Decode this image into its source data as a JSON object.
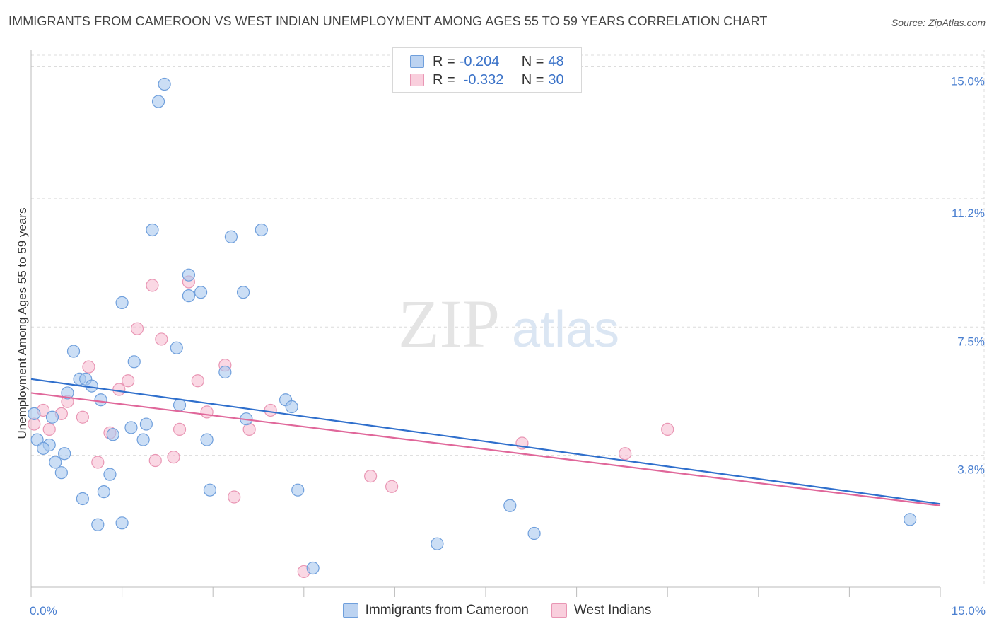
{
  "title": "IMMIGRANTS FROM CAMEROON VS WEST INDIAN UNEMPLOYMENT AMONG AGES 55 TO 59 YEARS CORRELATION CHART",
  "source": "Source: ZipAtlas.com",
  "watermark": {
    "zip": "ZIP",
    "atlas": "atlas"
  },
  "legend": {
    "r_label": "R =",
    "n_label": "N =",
    "series": [
      {
        "r": "-0.204",
        "n": "48"
      },
      {
        "r": "-0.332",
        "n": "30"
      }
    ]
  },
  "colors": {
    "blue_fill": "#a9c8ee",
    "blue_stroke": "#6f9fdc",
    "blue_line": "#2f6fcc",
    "pink_fill": "#f6bed2",
    "pink_stroke": "#e996b4",
    "pink_line": "#e0679a",
    "tick_text": "#4a7fd0",
    "grid": "#dcdcdc"
  },
  "chart_data": {
    "type": "scatter",
    "title": "IMMIGRANTS FROM CAMEROON VS WEST INDIAN UNEMPLOYMENT AMONG AGES 55 TO 59 YEARS CORRELATION CHART",
    "xlabel": "",
    "ylabel": "Unemployment Among Ages 55 to 59 years",
    "xlim": [
      0,
      15
    ],
    "ylim": [
      0,
      15.5
    ],
    "y_ticks": [
      {
        "value": 3.8,
        "label": "3.8%"
      },
      {
        "value": 7.5,
        "label": "7.5%"
      },
      {
        "value": 11.2,
        "label": "11.2%"
      },
      {
        "value": 15.0,
        "label": "15.0%"
      }
    ],
    "x_tick_labels": [
      {
        "value": 0,
        "label": "0.0%"
      },
      {
        "value": 15,
        "label": "15.0%"
      }
    ],
    "grid": true,
    "legend_position": "top-center",
    "series": [
      {
        "name": "Immigrants from Cameroon",
        "color": "#a9c8ee",
        "r": -0.204,
        "n": 48,
        "trend": {
          "x": [
            0,
            15
          ],
          "y": [
            6.0,
            2.4
          ]
        },
        "points": [
          [
            2.1,
            14.0
          ],
          [
            2.2,
            14.5
          ],
          [
            2.0,
            10.3
          ],
          [
            3.3,
            10.1
          ],
          [
            3.8,
            10.3
          ],
          [
            2.6,
            9.0
          ],
          [
            2.8,
            8.5
          ],
          [
            2.6,
            8.4
          ],
          [
            3.5,
            8.5
          ],
          [
            1.5,
            8.2
          ],
          [
            0.7,
            6.8
          ],
          [
            2.4,
            6.9
          ],
          [
            1.7,
            6.5
          ],
          [
            3.2,
            6.2
          ],
          [
            0.8,
            6.0
          ],
          [
            0.9,
            6.0
          ],
          [
            1.0,
            5.8
          ],
          [
            0.6,
            5.6
          ],
          [
            1.15,
            5.4
          ],
          [
            2.45,
            5.25
          ],
          [
            4.2,
            5.4
          ],
          [
            4.3,
            5.2
          ],
          [
            0.05,
            5.0
          ],
          [
            0.35,
            4.9
          ],
          [
            3.55,
            4.85
          ],
          [
            1.9,
            4.7
          ],
          [
            1.65,
            4.6
          ],
          [
            1.35,
            4.4
          ],
          [
            0.3,
            4.1
          ],
          [
            0.1,
            4.25
          ],
          [
            0.2,
            4.0
          ],
          [
            1.85,
            4.25
          ],
          [
            2.9,
            4.25
          ],
          [
            0.55,
            3.85
          ],
          [
            0.4,
            3.6
          ],
          [
            0.5,
            3.3
          ],
          [
            1.3,
            3.25
          ],
          [
            2.95,
            2.8
          ],
          [
            4.4,
            2.8
          ],
          [
            0.85,
            2.55
          ],
          [
            1.2,
            2.75
          ],
          [
            7.9,
            2.35
          ],
          [
            1.1,
            1.8
          ],
          [
            1.5,
            1.85
          ],
          [
            8.3,
            1.55
          ],
          [
            6.7,
            1.25
          ],
          [
            14.5,
            1.95
          ],
          [
            4.65,
            0.55
          ]
        ]
      },
      {
        "name": "West Indians",
        "color": "#f6bed2",
        "r": -0.332,
        "n": 30,
        "trend": {
          "x": [
            0,
            15
          ],
          "y": [
            5.6,
            2.35
          ]
        },
        "points": [
          [
            0.05,
            4.7
          ],
          [
            0.2,
            5.1
          ],
          [
            0.5,
            5.0
          ],
          [
            0.6,
            5.35
          ],
          [
            0.85,
            4.9
          ],
          [
            2.0,
            8.7
          ],
          [
            2.6,
            8.8
          ],
          [
            1.75,
            7.45
          ],
          [
            2.15,
            7.15
          ],
          [
            0.95,
            6.35
          ],
          [
            3.2,
            6.4
          ],
          [
            1.6,
            5.95
          ],
          [
            2.75,
            5.95
          ],
          [
            1.45,
            5.7
          ],
          [
            2.9,
            5.05
          ],
          [
            3.95,
            5.1
          ],
          [
            1.3,
            4.45
          ],
          [
            2.45,
            4.55
          ],
          [
            3.6,
            4.55
          ],
          [
            8.1,
            4.15
          ],
          [
            10.5,
            4.55
          ],
          [
            9.8,
            3.85
          ],
          [
            2.35,
            3.75
          ],
          [
            2.05,
            3.65
          ],
          [
            1.1,
            3.6
          ],
          [
            5.6,
            3.2
          ],
          [
            5.95,
            2.9
          ],
          [
            3.35,
            2.6
          ],
          [
            4.5,
            0.45
          ],
          [
            0.3,
            4.55
          ]
        ]
      }
    ]
  }
}
